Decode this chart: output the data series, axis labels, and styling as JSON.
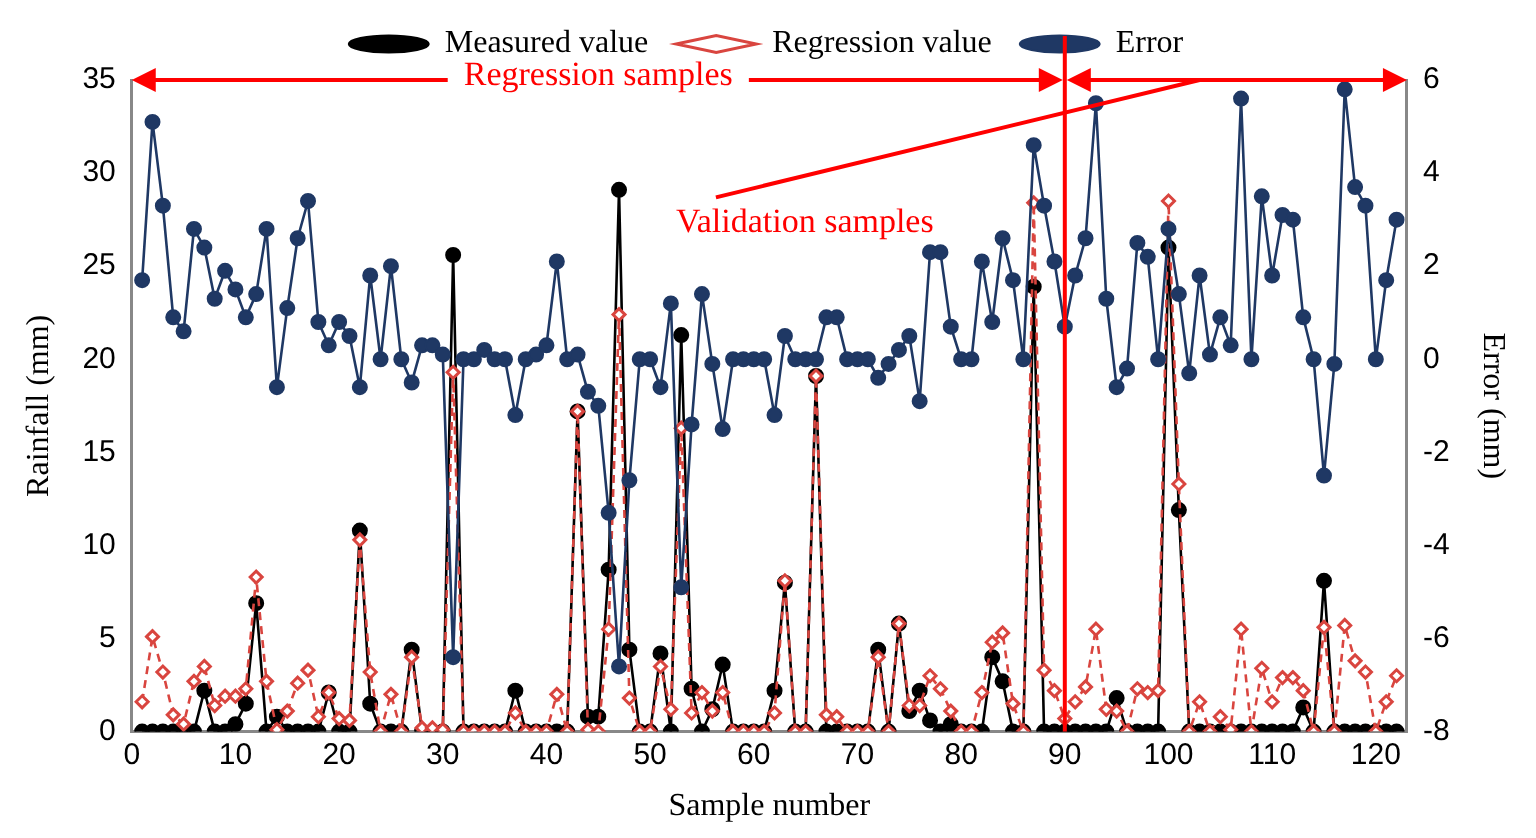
{
  "chart_data": {
    "type": "line",
    "xlabel": "Sample number",
    "ylabel": "Rainfall (mm)",
    "y2label": "Error (mm)",
    "x": [
      1,
      2,
      3,
      4,
      5,
      6,
      7,
      8,
      9,
      10,
      11,
      12,
      13,
      14,
      15,
      16,
      17,
      18,
      19,
      20,
      21,
      22,
      23,
      24,
      25,
      26,
      27,
      28,
      29,
      30,
      31,
      32,
      33,
      34,
      35,
      36,
      37,
      38,
      39,
      40,
      41,
      42,
      43,
      44,
      45,
      46,
      47,
      48,
      49,
      50,
      51,
      52,
      53,
      54,
      55,
      56,
      57,
      58,
      59,
      60,
      61,
      62,
      63,
      64,
      65,
      66,
      67,
      68,
      69,
      70,
      71,
      72,
      73,
      74,
      75,
      76,
      77,
      78,
      79,
      80,
      81,
      82,
      83,
      84,
      85,
      86,
      87,
      88,
      89,
      90,
      91,
      92,
      93,
      94,
      95,
      96,
      97,
      98,
      99,
      100,
      101,
      102,
      103,
      104,
      105,
      106,
      107,
      108,
      109,
      110,
      111,
      112,
      113,
      114,
      115,
      116,
      117,
      118,
      119,
      120,
      121,
      122
    ],
    "series": [
      {
        "name": "Measured value",
        "color": "#000000",
        "marker": "circle",
        "line_style": "solid",
        "values": [
          0,
          0,
          0,
          0,
          0,
          0,
          2.2,
          0,
          0,
          0.4,
          1.5,
          6.9,
          0,
          0.8,
          0,
          0,
          0,
          0,
          2.1,
          0,
          0,
          10.8,
          1.5,
          0,
          0,
          0,
          4.4,
          0,
          0,
          0,
          25.6,
          0,
          0,
          0,
          0,
          0,
          2.2,
          0,
          0,
          0,
          0,
          0,
          17.2,
          0.8,
          0.8,
          8.7,
          29.1,
          4.4,
          0,
          0,
          4.2,
          0,
          21.3,
          2.3,
          0,
          1.2,
          3.6,
          0,
          0,
          0,
          0,
          2.2,
          8.0,
          0,
          0,
          19.1,
          0,
          0,
          0,
          0,
          0,
          4.4,
          0,
          5.8,
          1.1,
          2.2,
          0.6,
          0,
          0.4,
          0,
          0,
          0,
          4.0,
          2.7,
          0,
          0,
          23.9,
          0,
          0,
          0,
          0,
          0,
          0,
          0,
          1.8,
          0,
          0,
          0,
          0,
          26.0,
          11.9,
          0,
          0,
          0,
          0,
          0,
          0,
          0,
          0,
          0,
          0,
          0,
          1.3,
          0,
          8.1,
          0,
          0,
          0,
          0,
          0,
          0,
          0
        ]
      },
      {
        "name": "Regression value",
        "color": "#d9453f",
        "marker": "diamond",
        "line_style": "dashed",
        "values": [
          1.6,
          5.1,
          3.2,
          0.9,
          0.4,
          2.7,
          3.5,
          1.4,
          1.9,
          1.9,
          2.3,
          8.3,
          2.7,
          0.1,
          1.1,
          2.6,
          3.3,
          0.8,
          2.1,
          0.7,
          0.6,
          10.3,
          3.2,
          0,
          2.0,
          0,
          4.0,
          0.2,
          0.2,
          0.1,
          19.3,
          0,
          0,
          0,
          0,
          0,
          1.0,
          0,
          0,
          0,
          2.0,
          0,
          17.2,
          0.1,
          0,
          5.5,
          22.4,
          1.8,
          0,
          0,
          3.5,
          1.2,
          16.3,
          1.0,
          2.1,
          1.1,
          2.1,
          0,
          0,
          0,
          0,
          1.0,
          8.1,
          0,
          0,
          19.1,
          0.9,
          0.8,
          0,
          0,
          0,
          4.0,
          0,
          5.8,
          1.4,
          1.4,
          3.0,
          2.3,
          1.1,
          0,
          0,
          2.1,
          4.8,
          5.3,
          1.5,
          0,
          28.4,
          3.3,
          2.2,
          0.7,
          1.6,
          2.4,
          5.5,
          1.2,
          1.1,
          0,
          2.3,
          2.1,
          2.2,
          28.5,
          13.3,
          0,
          1.6,
          0,
          0.8,
          0.1,
          5.5,
          0,
          3.4,
          1.6,
          2.9,
          2.9,
          2.2,
          0,
          5.6,
          0,
          5.7,
          3.8,
          3.2,
          0,
          1.6,
          3.0
        ]
      },
      {
        "name": "Error",
        "color": "#1f3864",
        "marker": "circle",
        "line_style": "solid",
        "axis": "y2",
        "values": [
          1.7,
          5.1,
          3.3,
          0.9,
          0.6,
          2.8,
          2.4,
          1.3,
          1.9,
          1.5,
          0.9,
          1.4,
          2.8,
          -0.6,
          1.1,
          2.6,
          3.4,
          0.8,
          0.3,
          0.8,
          0.5,
          -0.6,
          1.8,
          0,
          2.0,
          0,
          -0.5,
          0.3,
          0.3,
          0.1,
          -6.4,
          0,
          0,
          0.2,
          0,
          0,
          -1.2,
          0,
          0.1,
          0.3,
          2.1,
          0,
          0.1,
          -0.7,
          -1.0,
          -3.3,
          -6.6,
          -2.6,
          0,
          0,
          -0.6,
          1.2,
          -4.9,
          -1.4,
          1.4,
          -0.1,
          -1.5,
          0,
          0,
          0,
          0,
          -1.2,
          0.5,
          0,
          0,
          0,
          0.9,
          0.9,
          0,
          0,
          0,
          -0.4,
          -0.1,
          0.2,
          0.5,
          -0.9,
          2.3,
          2.3,
          0.7,
          0,
          0,
          2.1,
          0.8,
          2.6,
          1.7,
          0,
          4.6,
          3.3,
          2.1,
          0.7,
          1.8,
          2.6,
          5.5,
          1.3,
          -0.6,
          -0.2,
          2.5,
          2.2,
          0,
          2.8,
          1.4,
          -0.3,
          1.8,
          0.1,
          0.9,
          0.3,
          5.6,
          0,
          3.5,
          1.8,
          3.1,
          3.0,
          0.9,
          0,
          -2.5,
          -0.1,
          5.8,
          3.7,
          3.3,
          0,
          1.7,
          3.0
        ]
      }
    ],
    "xlim": [
      0,
      123
    ],
    "xticks": [
      0,
      10,
      20,
      30,
      40,
      50,
      60,
      70,
      80,
      90,
      100,
      110,
      120
    ],
    "ylim": [
      0,
      35
    ],
    "yticks": [
      0,
      5,
      10,
      15,
      20,
      25,
      30,
      35
    ],
    "y2lim": [
      -8,
      6
    ],
    "y2ticks": [
      -8,
      -6,
      -4,
      -2,
      0,
      2,
      4,
      6
    ],
    "ref_lines": [
      {
        "axis": "x",
        "value": 90,
        "color": "#ff0000"
      }
    ],
    "annotations": [
      "Regression samples",
      "Validation samples"
    ],
    "grid": false,
    "legend": "top"
  }
}
